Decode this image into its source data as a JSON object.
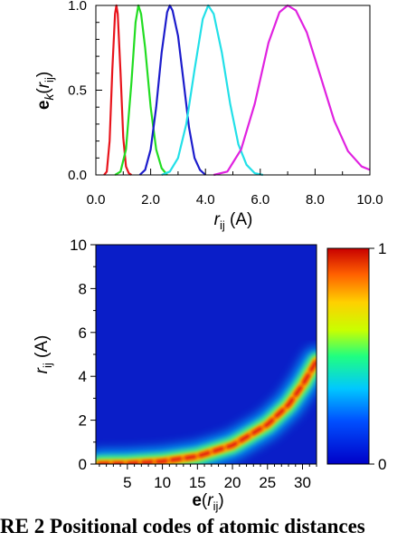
{
  "chart_data": [
    {
      "type": "line",
      "title": "",
      "xlabel": "r_ij (A)",
      "ylabel": "e_k(r_ij)",
      "xlim": [
        0,
        10
      ],
      "ylim": [
        0,
        1
      ],
      "x_ticks": [
        "0.0",
        "2.0",
        "4.0",
        "6.0",
        "8.0",
        "10.0"
      ],
      "y_ticks": [
        "0.0",
        "0.5",
        "1.0"
      ],
      "grid": false,
      "series": [
        {
          "color": "#e8141c",
          "x": [
            0.3,
            0.4,
            0.5,
            0.6,
            0.7,
            0.75,
            0.8,
            0.9,
            1.0,
            1.1,
            1.2,
            1.3
          ],
          "y": [
            0.0,
            0.02,
            0.2,
            0.62,
            0.95,
            1.0,
            0.95,
            0.6,
            0.22,
            0.05,
            0.01,
            0.0
          ]
        },
        {
          "color": "#22dd22",
          "x": [
            0.7,
            0.9,
            1.1,
            1.3,
            1.45,
            1.55,
            1.65,
            1.8,
            2.0,
            2.2,
            2.4,
            2.6
          ],
          "y": [
            0.0,
            0.02,
            0.15,
            0.55,
            0.9,
            1.0,
            0.95,
            0.75,
            0.4,
            0.15,
            0.04,
            0.0
          ]
        },
        {
          "color": "#1c1ccc",
          "x": [
            1.6,
            1.8,
            2.0,
            2.2,
            2.4,
            2.6,
            2.7,
            2.8,
            3.0,
            3.2,
            3.4,
            3.6,
            3.8,
            4.0
          ],
          "y": [
            0.0,
            0.03,
            0.15,
            0.4,
            0.72,
            0.96,
            1.0,
            0.97,
            0.82,
            0.55,
            0.28,
            0.1,
            0.03,
            0.0
          ]
        },
        {
          "color": "#22e0e8",
          "x": [
            2.4,
            2.7,
            3.0,
            3.3,
            3.6,
            3.9,
            4.1,
            4.3,
            4.6,
            4.9,
            5.2,
            5.5,
            5.8,
            6.1
          ],
          "y": [
            0.0,
            0.02,
            0.1,
            0.3,
            0.62,
            0.92,
            1.0,
            0.95,
            0.72,
            0.42,
            0.18,
            0.06,
            0.01,
            0.0
          ]
        },
        {
          "color": "#e022e0",
          "x": [
            4.3,
            4.8,
            5.3,
            5.8,
            6.3,
            6.7,
            7.0,
            7.3,
            7.7,
            8.2,
            8.7,
            9.2,
            9.7,
            10.0
          ],
          "y": [
            0.0,
            0.02,
            0.15,
            0.42,
            0.78,
            0.96,
            1.0,
            0.97,
            0.84,
            0.58,
            0.32,
            0.14,
            0.05,
            0.03
          ]
        }
      ]
    },
    {
      "type": "heatmap",
      "title": "",
      "xlabel": "e(r_ij)",
      "ylabel": "r_ij (A)",
      "xlim": [
        0.5,
        32
      ],
      "ylim": [
        0,
        10
      ],
      "x_ticks": [
        "5",
        "10",
        "15",
        "20",
        "25",
        "30"
      ],
      "y_ticks": [
        "0",
        "2",
        "4",
        "6",
        "8",
        "10"
      ],
      "colorbar": {
        "min_label": "0",
        "max_label": "1"
      },
      "ridge": {
        "x": [
          1,
          5,
          10,
          15,
          20,
          25,
          28,
          30,
          32
        ],
        "y": [
          0.0,
          0.02,
          0.12,
          0.35,
          0.85,
          1.8,
          2.7,
          3.6,
          4.7
        ]
      }
    }
  ],
  "caption_text": "RE 2 Positional codes of atomic distances"
}
